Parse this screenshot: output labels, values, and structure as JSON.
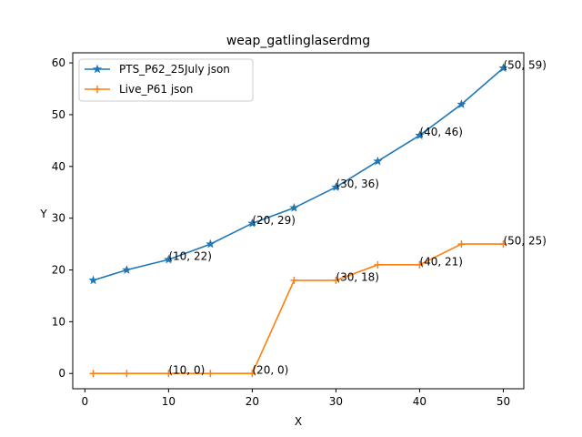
{
  "chart_data": {
    "type": "line",
    "title": "weap_gatlinglaserdmg",
    "xlabel": "X",
    "ylabel": "Y",
    "xlim": [
      -1.45,
      52.45
    ],
    "ylim": [
      -2.95,
      61.95
    ],
    "xticks": [
      0,
      10,
      20,
      30,
      40,
      50
    ],
    "yticks": [
      0,
      10,
      20,
      30,
      40,
      50,
      60
    ],
    "grid": false,
    "legend_position": "top-left",
    "series": [
      {
        "name": "PTS_P62_25July json",
        "color": "#1f77b4",
        "marker": "star",
        "x": [
          1,
          5,
          10,
          15,
          20,
          25,
          30,
          35,
          40,
          45,
          50
        ],
        "y": [
          18,
          20,
          22,
          25,
          29,
          32,
          36,
          41,
          46,
          52,
          59
        ]
      },
      {
        "name": "Live_P61 json",
        "color": "#ff7f0e",
        "marker": "plus",
        "x": [
          1,
          5,
          10,
          15,
          20,
          25,
          30,
          35,
          40,
          45,
          50
        ],
        "y": [
          0,
          0,
          0,
          0,
          0,
          18,
          18,
          21,
          21,
          25,
          25
        ]
      }
    ],
    "annotations": [
      {
        "text": "(10, 22)",
        "x": 10,
        "y": 22
      },
      {
        "text": "(20, 29)",
        "x": 20,
        "y": 29
      },
      {
        "text": "(30, 36)",
        "x": 30,
        "y": 36
      },
      {
        "text": "(40, 46)",
        "x": 40,
        "y": 46
      },
      {
        "text": "(50, 59)",
        "x": 50,
        "y": 59
      },
      {
        "text": "(10, 0)",
        "x": 10,
        "y": 0
      },
      {
        "text": "(20, 0)",
        "x": 20,
        "y": 0
      },
      {
        "text": "(30, 18)",
        "x": 30,
        "y": 18
      },
      {
        "text": "(40, 21)",
        "x": 40,
        "y": 21
      },
      {
        "text": "(50, 25)",
        "x": 50,
        "y": 25
      }
    ]
  }
}
